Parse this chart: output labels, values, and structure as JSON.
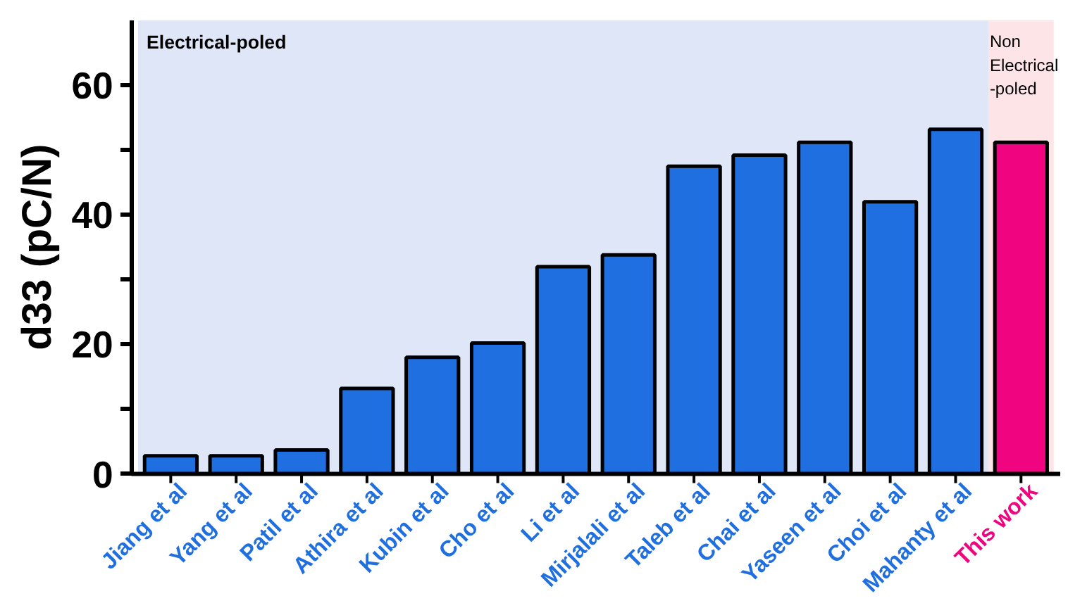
{
  "chart_data": {
    "type": "bar",
    "ylabel": "d33 (pC/N)",
    "categories": [
      "Jiang et al",
      "Yang et al",
      "Patil et al",
      "Athira et al",
      "Kubin et al",
      "Cho et al",
      "Li et al",
      "Mirjalali et al",
      "Taleb et al",
      "Chai et al",
      "Yaseen et al",
      "Choi et al",
      "Mahanty et al",
      "This work"
    ],
    "values": [
      2.8,
      2.8,
      3.7,
      13.2,
      18,
      20.2,
      32,
      33.8,
      47.5,
      49.2,
      51.2,
      42,
      53.2,
      51.2
    ],
    "colors": [
      "#1f6fe0",
      "#1f6fe0",
      "#1f6fe0",
      "#1f6fe0",
      "#1f6fe0",
      "#1f6fe0",
      "#1f6fe0",
      "#1f6fe0",
      "#1f6fe0",
      "#1f6fe0",
      "#1f6fe0",
      "#1f6fe0",
      "#1f6fe0",
      "#f0047f"
    ],
    "ylim": [
      0,
      70
    ],
    "yticks": [
      0,
      {
        "value": 10,
        "label": null
      },
      20,
      {
        "value": 30,
        "label": null
      },
      40,
      {
        "value": 50,
        "label": null
      },
      60
    ],
    "bands": [
      {
        "axis": "x",
        "from": "Jiang et al",
        "to": "Mahanty et al",
        "label": "Electrical-poled",
        "color": "#dfe6f7"
      },
      {
        "axis": "x",
        "from": "This work",
        "to": "This work",
        "label": "Non\nElectrical\n-poled",
        "color": "#fde4e6"
      }
    ],
    "grid": false
  }
}
